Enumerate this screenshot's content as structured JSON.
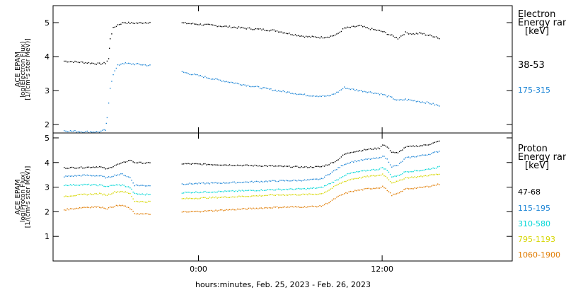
{
  "chart_data": [
    {
      "type": "scatter",
      "panel": "electron",
      "ylabel": [
        "ACE EPAM",
        "log(Electron Flux)",
        "[1/(cm²s ster MeV)]"
      ],
      "ylim": [
        1.75,
        5.5
      ],
      "yticks": [
        "2",
        "3",
        "4",
        "5"
      ],
      "legend_title": [
        "Electron",
        "Energy range",
        "[keV]"
      ],
      "series": [
        {
          "name": "38-53",
          "color": "#000000",
          "points": [
            [
              -8.8,
              3.88
            ],
            [
              -7.5,
              3.84
            ],
            [
              -6.5,
              3.8
            ],
            [
              -6.1,
              3.82
            ],
            [
              -5.9,
              3.95
            ],
            [
              -5.8,
              4.55
            ],
            [
              -5.6,
              4.85
            ],
            [
              -5.3,
              4.95
            ],
            [
              -4.9,
              5.02
            ],
            [
              -4.5,
              5.0
            ],
            [
              -4.0,
              5.0
            ],
            [
              -2.5,
              5.05
            ],
            [
              -1.0,
              5.0
            ],
            [
              1.0,
              4.93
            ],
            [
              3.0,
              4.85
            ],
            [
              5.0,
              4.78
            ],
            [
              6.0,
              4.68
            ],
            [
              7.0,
              4.6
            ],
            [
              8.0,
              4.58
            ],
            [
              8.5,
              4.6
            ],
            [
              9.0,
              4.66
            ],
            [
              9.5,
              4.85
            ],
            [
              10.0,
              4.88
            ],
            [
              10.5,
              4.92
            ],
            [
              11.0,
              4.85
            ],
            [
              11.5,
              4.8
            ],
            [
              12.0,
              4.75
            ],
            [
              12.5,
              4.65
            ],
            [
              13.0,
              4.55
            ],
            [
              13.5,
              4.72
            ],
            [
              14.0,
              4.68
            ],
            [
              14.5,
              4.7
            ],
            [
              15.0,
              4.64
            ],
            [
              15.5,
              4.6
            ],
            [
              15.8,
              4.52
            ]
          ]
        },
        {
          "name": "175-315",
          "color": "#1f86d6",
          "points": [
            [
              -8.8,
              1.83
            ],
            [
              -7.5,
              1.8
            ],
            [
              -6.5,
              1.8
            ],
            [
              -6.1,
              1.85
            ],
            [
              -6.0,
              2.2
            ],
            [
              -5.8,
              3.1
            ],
            [
              -5.6,
              3.5
            ],
            [
              -5.3,
              3.75
            ],
            [
              -5.0,
              3.82
            ],
            [
              -4.5,
              3.8
            ],
            [
              -4.0,
              3.79
            ],
            [
              -2.5,
              3.72
            ],
            [
              -1.0,
              3.55
            ],
            [
              1.0,
              3.35
            ],
            [
              3.0,
              3.18
            ],
            [
              5.0,
              3.02
            ],
            [
              6.0,
              2.95
            ],
            [
              7.0,
              2.88
            ],
            [
              8.0,
              2.85
            ],
            [
              8.5,
              2.85
            ],
            [
              9.0,
              2.95
            ],
            [
              9.5,
              3.1
            ],
            [
              10.0,
              3.05
            ],
            [
              11.0,
              2.98
            ],
            [
              12.0,
              2.9
            ],
            [
              12.5,
              2.82
            ],
            [
              13.0,
              2.72
            ],
            [
              13.5,
              2.75
            ],
            [
              14.0,
              2.72
            ],
            [
              15.0,
              2.65
            ],
            [
              15.8,
              2.55
            ]
          ]
        }
      ]
    },
    {
      "type": "scatter",
      "panel": "proton",
      "ylabel": [
        "ACE EPAM",
        "log(Proton Flux)",
        "[1/(cm²s ster MeV)]"
      ],
      "ylim": [
        0,
        5.2
      ],
      "yticks": [
        "1",
        "2",
        "3",
        "4",
        "5"
      ],
      "legend_title": [
        "Proton",
        "Energy range",
        "[keV]"
      ],
      "series": [
        {
          "name": "47-68",
          "color": "#000000",
          "points": [
            [
              -8.8,
              3.8
            ],
            [
              -7.5,
              3.82
            ],
            [
              -6.5,
              3.85
            ],
            [
              -6.0,
              3.75
            ],
            [
              -5.5,
              3.9
            ],
            [
              -5.0,
              4.0
            ],
            [
              -4.5,
              4.12
            ],
            [
              -4.2,
              4.02
            ],
            [
              -3.5,
              4.0
            ],
            [
              -1.0,
              3.97
            ],
            [
              2.0,
              3.92
            ],
            [
              5.0,
              3.87
            ],
            [
              7.0,
              3.83
            ],
            [
              8.0,
              3.85
            ],
            [
              8.5,
              3.95
            ],
            [
              9.0,
              4.1
            ],
            [
              9.5,
              4.35
            ],
            [
              10.0,
              4.45
            ],
            [
              11.0,
              4.55
            ],
            [
              11.8,
              4.6
            ],
            [
              12.0,
              4.75
            ],
            [
              12.3,
              4.65
            ],
            [
              12.6,
              4.45
            ],
            [
              13.0,
              4.4
            ],
            [
              13.5,
              4.65
            ],
            [
              14.5,
              4.7
            ],
            [
              15.0,
              4.75
            ],
            [
              15.8,
              4.9
            ]
          ]
        },
        {
          "name": "115-195",
          "color": "#1f86d6",
          "points": [
            [
              -8.8,
              3.45
            ],
            [
              -7.5,
              3.5
            ],
            [
              -6.5,
              3.48
            ],
            [
              -6.0,
              3.4
            ],
            [
              -5.5,
              3.5
            ],
            [
              -5.0,
              3.55
            ],
            [
              -4.5,
              3.4
            ],
            [
              -4.2,
              3.1
            ],
            [
              -3.5,
              3.08
            ],
            [
              -1.0,
              3.15
            ],
            [
              2.0,
              3.2
            ],
            [
              5.0,
              3.27
            ],
            [
              7.0,
              3.3
            ],
            [
              8.0,
              3.35
            ],
            [
              8.5,
              3.55
            ],
            [
              9.0,
              3.75
            ],
            [
              9.5,
              3.95
            ],
            [
              10.0,
              4.05
            ],
            [
              11.0,
              4.15
            ],
            [
              11.8,
              4.2
            ],
            [
              12.0,
              4.3
            ],
            [
              12.3,
              4.15
            ],
            [
              12.6,
              3.85
            ],
            [
              13.0,
              3.9
            ],
            [
              13.5,
              4.2
            ],
            [
              14.5,
              4.3
            ],
            [
              15.0,
              4.35
            ],
            [
              15.8,
              4.5
            ]
          ]
        },
        {
          "name": "310-580",
          "color": "#00d6d6",
          "points": [
            [
              -8.8,
              3.1
            ],
            [
              -7.5,
              3.12
            ],
            [
              -6.5,
              3.1
            ],
            [
              -6.0,
              3.05
            ],
            [
              -5.5,
              3.1
            ],
            [
              -5.0,
              3.1
            ],
            [
              -4.5,
              3.0
            ],
            [
              -4.2,
              2.75
            ],
            [
              -3.5,
              2.72
            ],
            [
              -1.0,
              2.8
            ],
            [
              2.0,
              2.85
            ],
            [
              5.0,
              2.92
            ],
            [
              7.0,
              2.95
            ],
            [
              8.0,
              3.0
            ],
            [
              8.5,
              3.15
            ],
            [
              9.0,
              3.3
            ],
            [
              9.5,
              3.5
            ],
            [
              10.0,
              3.6
            ],
            [
              11.0,
              3.7
            ],
            [
              11.8,
              3.75
            ],
            [
              12.0,
              3.82
            ],
            [
              12.3,
              3.7
            ],
            [
              12.6,
              3.45
            ],
            [
              13.0,
              3.48
            ],
            [
              13.5,
              3.65
            ],
            [
              14.5,
              3.7
            ],
            [
              15.0,
              3.75
            ],
            [
              15.8,
              3.85
            ]
          ]
        },
        {
          "name": "795-1193",
          "color": "#d6d600",
          "points": [
            [
              -8.8,
              2.65
            ],
            [
              -7.5,
              2.72
            ],
            [
              -6.5,
              2.75
            ],
            [
              -6.0,
              2.7
            ],
            [
              -5.5,
              2.82
            ],
            [
              -5.0,
              2.85
            ],
            [
              -4.5,
              2.75
            ],
            [
              -4.2,
              2.45
            ],
            [
              -3.5,
              2.42
            ],
            [
              -1.0,
              2.55
            ],
            [
              2.0,
              2.62
            ],
            [
              5.0,
              2.7
            ],
            [
              7.0,
              2.72
            ],
            [
              8.0,
              2.75
            ],
            [
              8.5,
              2.9
            ],
            [
              9.0,
              3.1
            ],
            [
              9.5,
              3.25
            ],
            [
              10.0,
              3.35
            ],
            [
              11.0,
              3.45
            ],
            [
              11.8,
              3.5
            ],
            [
              12.0,
              3.55
            ],
            [
              12.3,
              3.4
            ],
            [
              12.6,
              3.2
            ],
            [
              13.0,
              3.25
            ],
            [
              13.5,
              3.4
            ],
            [
              14.5,
              3.45
            ],
            [
              15.0,
              3.5
            ],
            [
              15.8,
              3.55
            ]
          ]
        },
        {
          "name": "1060-1900",
          "color": "#e07b00",
          "points": [
            [
              -8.8,
              2.1
            ],
            [
              -7.5,
              2.2
            ],
            [
              -6.5,
              2.22
            ],
            [
              -6.0,
              2.15
            ],
            [
              -5.5,
              2.25
            ],
            [
              -5.0,
              2.28
            ],
            [
              -4.5,
              2.15
            ],
            [
              -4.2,
              1.95
            ],
            [
              -3.5,
              1.92
            ],
            [
              -1.0,
              2.0
            ],
            [
              2.0,
              2.1
            ],
            [
              5.0,
              2.2
            ],
            [
              7.0,
              2.22
            ],
            [
              8.0,
              2.25
            ],
            [
              8.5,
              2.4
            ],
            [
              9.0,
              2.6
            ],
            [
              9.5,
              2.75
            ],
            [
              10.0,
              2.85
            ],
            [
              11.0,
              2.95
            ],
            [
              11.8,
              3.0
            ],
            [
              12.0,
              3.05
            ],
            [
              12.3,
              2.9
            ],
            [
              12.6,
              2.7
            ],
            [
              13.0,
              2.75
            ],
            [
              13.5,
              2.95
            ],
            [
              14.5,
              3.0
            ],
            [
              15.0,
              3.05
            ],
            [
              15.8,
              3.15
            ]
          ]
        }
      ]
    }
  ],
  "x_axis": {
    "label": "hours:minutes, Feb. 25, 2023 - Feb. 26, 2023",
    "xlim": [
      -9.5,
      20.5
    ],
    "ticks": [
      {
        "value": 0,
        "label": "0:00"
      },
      {
        "value": 12,
        "label": "12:00"
      }
    ],
    "gaps": [
      [
        -3.2,
        -1.1
      ]
    ]
  }
}
